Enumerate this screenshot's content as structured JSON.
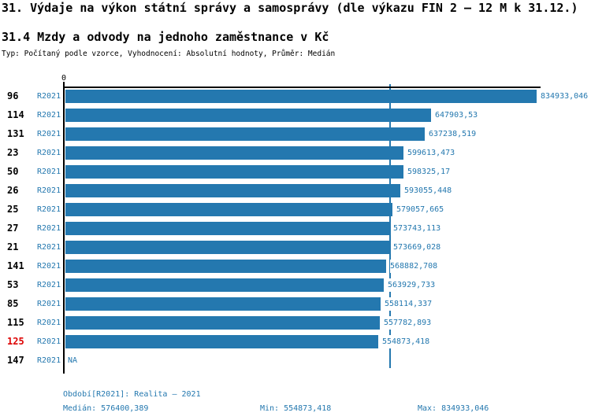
{
  "header": {
    "title": "31. Výdaje na výkon státní správy a samosprávy (dle výkazu FIN 2 – 12 M k 31.12.)",
    "subtitle": "31.4 Mzdy a odvody na jednoho zaměstnance v Kč",
    "meta": "Typ: Počítaný podle vzorce, Vyhodnocení: Absolutní hodnoty, Průměr: Medián"
  },
  "chart_data": {
    "type": "bar",
    "orientation": "horizontal",
    "title": "31.4 Mzdy a odvody na jednoho zaměstnance v Kč",
    "xlabel": "",
    "ylabel": "",
    "axis": {
      "zero_label": "0",
      "xmin": 0,
      "xmax": 834933.046
    },
    "grid": false,
    "legend": null,
    "median_line_value": 576400.389,
    "series_period": "R2021",
    "na_label": "NA",
    "highlighted_category": "125",
    "rows": [
      {
        "rank": "96",
        "period": "R2021",
        "value": 834933.046,
        "value_label": "834933,046",
        "highlighted": false
      },
      {
        "rank": "114",
        "period": "R2021",
        "value": 647903.53,
        "value_label": "647903,53",
        "highlighted": false
      },
      {
        "rank": "131",
        "period": "R2021",
        "value": 637238.519,
        "value_label": "637238,519",
        "highlighted": false
      },
      {
        "rank": "23",
        "period": "R2021",
        "value": 599613.473,
        "value_label": "599613,473",
        "highlighted": false
      },
      {
        "rank": "50",
        "period": "R2021",
        "value": 598325.17,
        "value_label": "598325,17",
        "highlighted": false
      },
      {
        "rank": "26",
        "period": "R2021",
        "value": 593055.448,
        "value_label": "593055,448",
        "highlighted": false
      },
      {
        "rank": "25",
        "period": "R2021",
        "value": 579057.665,
        "value_label": "579057,665",
        "highlighted": false
      },
      {
        "rank": "27",
        "period": "R2021",
        "value": 573743.113,
        "value_label": "573743,113",
        "highlighted": false
      },
      {
        "rank": "21",
        "period": "R2021",
        "value": 573669.028,
        "value_label": "573669,028",
        "highlighted": false
      },
      {
        "rank": "141",
        "period": "R2021",
        "value": 568882.708,
        "value_label": "568882,708",
        "highlighted": false
      },
      {
        "rank": "53",
        "period": "R2021",
        "value": 563929.733,
        "value_label": "563929,733",
        "highlighted": false
      },
      {
        "rank": "85",
        "period": "R2021",
        "value": 558114.337,
        "value_label": "558114,337",
        "highlighted": false
      },
      {
        "rank": "115",
        "period": "R2021",
        "value": 557782.893,
        "value_label": "557782,893",
        "highlighted": false
      },
      {
        "rank": "125",
        "period": "R2021",
        "value": 554873.418,
        "value_label": "554873,418",
        "highlighted": true
      },
      {
        "rank": "147",
        "period": "R2021",
        "value": null,
        "value_label": "NA",
        "highlighted": false
      }
    ]
  },
  "footer": {
    "period": "Období[R2021]: Realita – 2021",
    "median": "Medián: 576400,389",
    "min": "Min: 554873,418",
    "max": "Max: 834933,046"
  },
  "colors": {
    "bar": "#2478AF",
    "blue_text": "#2478AF",
    "median_line": "#2478AF",
    "highlight_red": "#DD0000",
    "axis": "#000000"
  }
}
